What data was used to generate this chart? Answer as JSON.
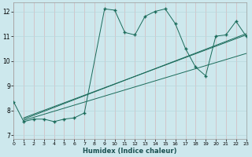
{
  "xlabel": "Humidex (Indice chaleur)",
  "background_color": "#cde8ed",
  "line_color": "#1a6b5a",
  "grid_color": "#b8d8dd",
  "xlim": [
    0,
    23
  ],
  "ylim": [
    6.85,
    12.35
  ],
  "yticks": [
    7,
    8,
    9,
    10,
    11,
    12
  ],
  "xticks": [
    0,
    1,
    2,
    3,
    4,
    5,
    6,
    7,
    8,
    9,
    10,
    11,
    12,
    13,
    14,
    15,
    16,
    17,
    18,
    19,
    20,
    21,
    22,
    23
  ],
  "series1_x": [
    0,
    1,
    2,
    3,
    4,
    5,
    6,
    7,
    9,
    10,
    11,
    12,
    13,
    14,
    15,
    16,
    17,
    18,
    19,
    20,
    21,
    22,
    23
  ],
  "series1_y": [
    8.35,
    7.55,
    7.65,
    7.65,
    7.55,
    7.65,
    7.7,
    7.9,
    12.1,
    12.05,
    11.15,
    11.05,
    11.8,
    12.0,
    12.1,
    11.5,
    10.5,
    9.75,
    9.4,
    11.0,
    11.05,
    11.6,
    11.0
  ],
  "trend1_x": [
    1,
    23
  ],
  "trend1_y": [
    7.7,
    11.05
  ],
  "trend2_x": [
    1,
    23
  ],
  "trend2_y": [
    7.65,
    11.1
  ],
  "trend3_x": [
    1,
    23
  ],
  "trend3_y": [
    7.6,
    10.3
  ]
}
